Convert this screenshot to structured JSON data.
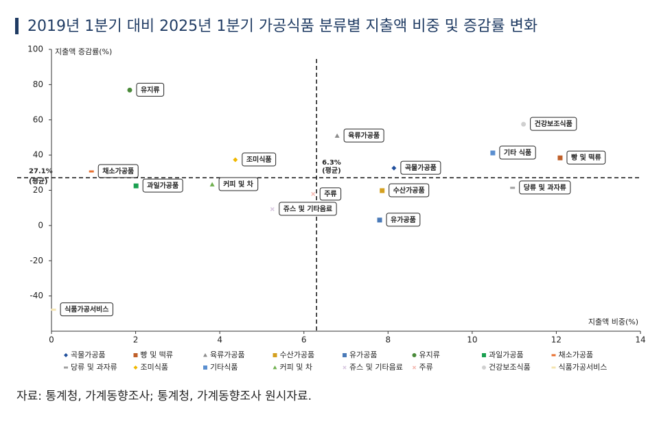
{
  "chart_data": {
    "type": "scatter",
    "title": "2019년 1분기 대비 2025년 1분기 가공식품 분류별 지출액 비중 및 증감률 변화",
    "x_label": "지출액 비중(%)",
    "y_label": "지출액 증감률(%)",
    "xlim": [
      0,
      14
    ],
    "xticks": [
      0,
      2,
      4,
      6,
      8,
      10,
      12,
      14
    ],
    "ylim": [
      -60,
      100
    ],
    "yticks": [
      100,
      80,
      60,
      40,
      20,
      0,
      -20,
      -40
    ],
    "reference_lines": [
      {
        "axis": "x",
        "value": 6.3,
        "label": "6.3%",
        "note": "(평균)"
      },
      {
        "axis": "y",
        "value": 27.1,
        "label": "27.1%",
        "note": "(평균)"
      }
    ],
    "series": [
      {
        "name": "곡물가공품",
        "point_label": "곡물가공품",
        "color": "#1f4e9c",
        "marker": "diamond",
        "x": [
          8.14
        ],
        "values": [
          32.6
        ]
      },
      {
        "name": "빵 및 떡류",
        "point_label": "빵 및 떡류",
        "color": "#c0602a",
        "marker": "square",
        "x": [
          12.09
        ],
        "values": [
          38.4
        ]
      },
      {
        "name": "육류가공품",
        "point_label": "육류가공품",
        "color": "#8c8c8c",
        "marker": "triangle",
        "x": [
          6.79
        ],
        "values": [
          50.9
        ]
      },
      {
        "name": "수산가공품",
        "point_label": "수산가공품",
        "color": "#d4a020",
        "marker": "square",
        "x": [
          7.86
        ],
        "values": [
          19.8
        ]
      },
      {
        "name": "유가공품",
        "point_label": "유가공품",
        "color": "#4a7ab8",
        "marker": "square",
        "x": [
          7.8
        ],
        "values": [
          3.1
        ]
      },
      {
        "name": "유지류",
        "point_label": "유지류",
        "color": "#4a8a3a",
        "marker": "circle",
        "x": [
          1.86
        ],
        "values": [
          76.9
        ]
      },
      {
        "name": "과일가공품",
        "point_label": "과일가공품",
        "color": "#1aa050",
        "marker": "square",
        "x": [
          2.01
        ],
        "values": [
          22.5
        ]
      },
      {
        "name": "채소가공품",
        "point_label": "채소가공품",
        "color": "#e87030",
        "marker": "dash",
        "x": [
          0.95
        ],
        "values": [
          30.7
        ]
      },
      {
        "name": "당류 및 과자류",
        "point_label": "당류 및 과자류",
        "color": "#a0a0a0",
        "marker": "dash",
        "x": [
          10.96
        ],
        "values": [
          21.4
        ]
      },
      {
        "name": "조미식품",
        "point_label": "조미식품",
        "color": "#f0b800",
        "marker": "diamond",
        "x": [
          4.37
        ],
        "values": [
          37.3
        ]
      },
      {
        "name": "기타식품",
        "point_label": "기타 식품",
        "color": "#5b8fd0",
        "marker": "square",
        "x": [
          10.49
        ],
        "values": [
          41.2
        ]
      },
      {
        "name": "커피 및 차",
        "point_label": "커피 및 차",
        "color": "#70b050",
        "marker": "triangle",
        "x": [
          3.82
        ],
        "values": [
          23.3
        ]
      },
      {
        "name": "쥬스 및 기타음료",
        "point_label": "쥬스 및 기타음료",
        "color": "#d8c8e0",
        "marker": "x",
        "x": [
          5.25
        ],
        "values": [
          9.3
        ]
      },
      {
        "name": "주류",
        "point_label": "주류",
        "color": "#f4b8b0",
        "marker": "x",
        "x": [
          6.22
        ],
        "values": [
          17.9
        ]
      },
      {
        "name": "건강보조식품",
        "point_label": "건강보조식품",
        "color": "#d0d0d0",
        "marker": "circle",
        "x": [
          11.22
        ],
        "values": [
          57.5
        ]
      },
      {
        "name": "식품가공서비스",
        "point_label": "식품가공서비스",
        "color": "#f4e4b0",
        "marker": "dash",
        "x": [
          0.05
        ],
        "values": [
          -47.8
        ]
      }
    ],
    "source": "자료: 통계청, 가계동향조사; 통계청, 가계동향조사 원시자료."
  }
}
